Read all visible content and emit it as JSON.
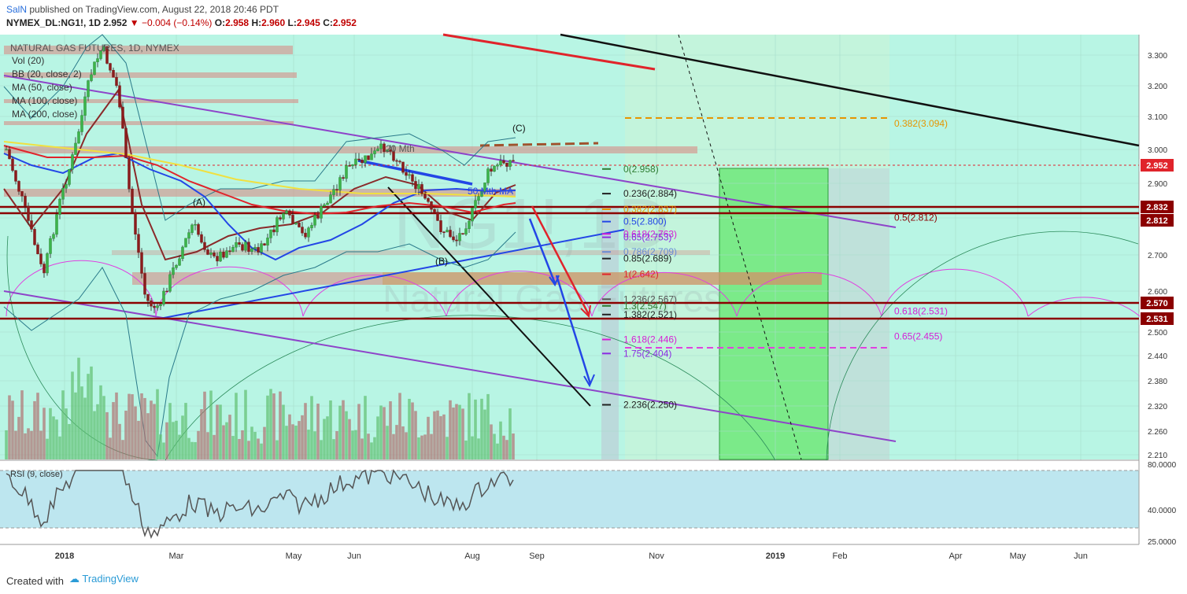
{
  "header": {
    "author": "SalN",
    "publish_text": "published on TradingView.com, August 22, 2018 20:46 PDT",
    "symbol": "NYMEX_DL:NG1!, 1D",
    "last": "2.952",
    "change": "−0.004 (−0.14%)",
    "ohlc": {
      "o_label": "O:",
      "o": "2.958",
      "h_label": "H:",
      "h": "2.960",
      "l_label": "L:",
      "l": "2.945",
      "c_label": "C:",
      "c": "2.952"
    }
  },
  "footer": {
    "created_with": "Created with",
    "brand": "TradingView"
  },
  "colors": {
    "bg_mint": "#b8f5e4",
    "green_zone": "#6fe87a",
    "price_red": "#e0242b",
    "ma50": "#2346e6",
    "ma100": "#e0242b",
    "ma200": "#f0e040",
    "bb": "#8a2a2a",
    "rsi_bg": "#bde6ef"
  },
  "chart_data": {
    "type": "candlestick",
    "title": "NATURAL GAS FUTURES, 1D, NYMEX",
    "watermark": "NG1! Natural Gas Futures",
    "studies": [
      "Vol (20)",
      "BB (20, close, 2)",
      "MA (50, close)",
      "MA (100, close)",
      "MA (200, close)"
    ],
    "rsi_label": "RSI (9, close)",
    "y_ticks": [
      "3.300",
      "3.200",
      "3.100",
      "3.000",
      "2.900",
      "2.800",
      "2.700",
      "2.600",
      "2.500",
      "2.440",
      "2.380",
      "2.320",
      "2.260",
      "2.210"
    ],
    "rsi_ticks": [
      "80.0000",
      "40.0000",
      "25.0000"
    ],
    "x_ticks": [
      "2018",
      "Mar",
      "May",
      "Jun",
      "Aug",
      "Sep",
      "Nov",
      "2019",
      "Feb",
      "Apr",
      "May",
      "Jun"
    ],
    "last_price": 2.952,
    "price_tags": [
      {
        "label": "2.952",
        "color": "#e0242b"
      },
      {
        "label": "2.832",
        "color": "#8b0000"
      },
      {
        "label": "2.812",
        "color": "#8b0000"
      },
      {
        "label": "2.570",
        "color": "#8b0000"
      },
      {
        "label": "2.531",
        "color": "#8b0000"
      }
    ],
    "fib_levels": [
      {
        "label": "0(2.958)",
        "value": 2.958,
        "color": "#2e7d32"
      },
      {
        "label": "0.236(2.884)",
        "value": 2.884,
        "color": "#222222"
      },
      {
        "label": "0.382(2.837)",
        "value": 2.837,
        "color": "#e69500"
      },
      {
        "label": "0.5(2.800)",
        "value": 2.8,
        "color": "#2346e6"
      },
      {
        "label": "0.618(2.763)",
        "value": 2.763,
        "color": "#d61fd6"
      },
      {
        "label": "0.65(2.753)",
        "value": 2.753,
        "color": "#8a2be2"
      },
      {
        "label": "0.786(2.709)",
        "value": 2.709,
        "color": "#6a8bd6"
      },
      {
        "label": "0.85(2.689)",
        "value": 2.689,
        "color": "#222222"
      },
      {
        "label": "1(2.642)",
        "value": 2.642,
        "color": "#e0242b"
      },
      {
        "label": "1.236(2.567)",
        "value": 2.567,
        "color": "#555555"
      },
      {
        "label": "1.3(2.547)",
        "value": 2.547,
        "color": "#2e7d32"
      },
      {
        "label": "1.382(2.521)",
        "value": 2.521,
        "color": "#222222"
      },
      {
        "label": "1.618(2.446)",
        "value": 2.446,
        "color": "#d61fd6"
      },
      {
        "label": "1.75(2.404)",
        "value": 2.404,
        "color": "#8a2be2"
      },
      {
        "label": "2.236(2.250)",
        "value": 2.25,
        "color": "#222222"
      }
    ],
    "right_fibs": [
      {
        "label": "0.382(3.094)",
        "value": 3.094,
        "color": "#e69500"
      },
      {
        "label": "0.5(2.812)",
        "value": 2.812,
        "color": "#8b0000"
      },
      {
        "label": "0.618(2.531)",
        "value": 2.531,
        "color": "#d61fd6"
      },
      {
        "label": "0.65(2.455)",
        "value": 2.455,
        "color": "#d61fd6"
      }
    ],
    "wave_labels": [
      "(A)",
      "(B)",
      "(C)"
    ],
    "annotations": [
      "20 Mth",
      "50 Mth MA"
    ]
  }
}
